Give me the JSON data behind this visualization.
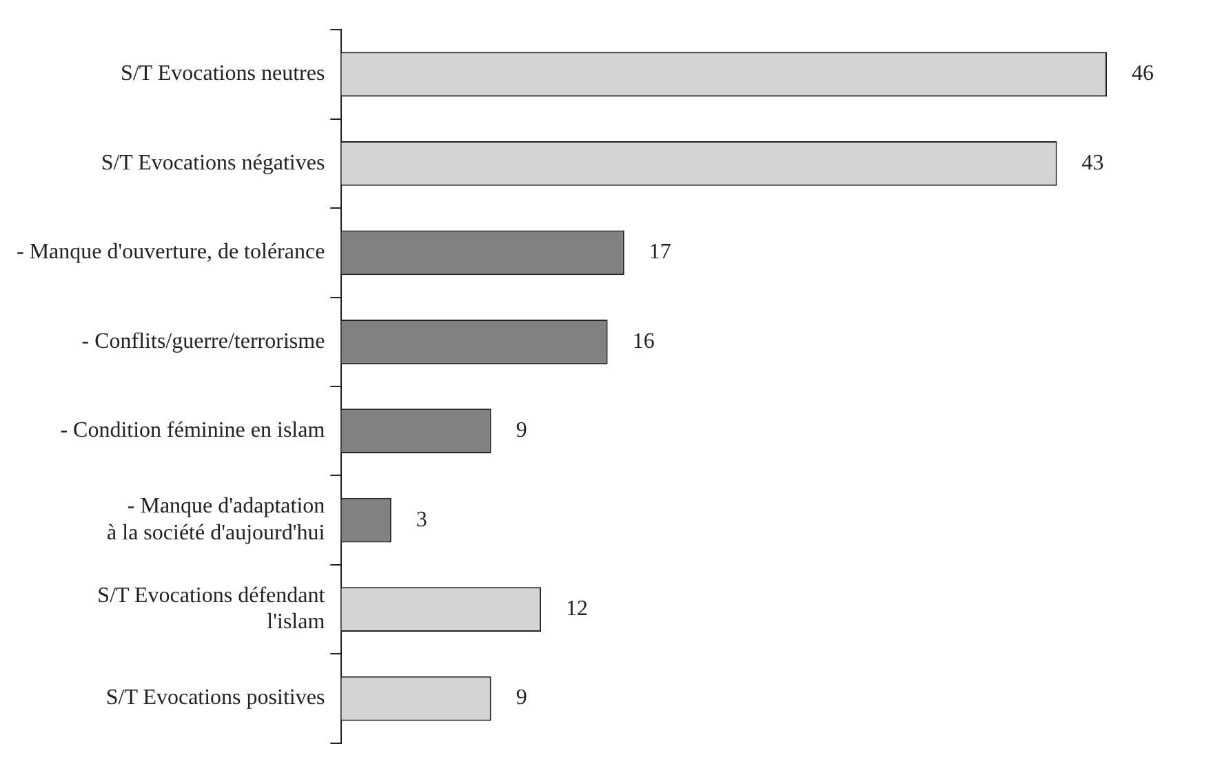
{
  "chart_data": {
    "type": "bar",
    "orientation": "horizontal",
    "categories": [
      "S/T Evocations neutres",
      "S/T Evocations négatives",
      "- Manque d'ouverture, de tolérance",
      "- Conflits/guerre/terrorisme",
      "- Condition féminine en islam",
      "- Manque d'adaptation\nà la société d'aujourd'hui",
      "S/T Evocations défendant\nl'islam",
      "S/T Evocations positives"
    ],
    "values": [
      46,
      43,
      17,
      16,
      9,
      3,
      12,
      9
    ],
    "colors": [
      "#d3d4d6",
      "#d3d4d6",
      "#808183",
      "#808183",
      "#808183",
      "#808183",
      "#d3d4d6",
      "#d3d4d6"
    ],
    "data_labels": true,
    "grid": false,
    "legend": false
  }
}
